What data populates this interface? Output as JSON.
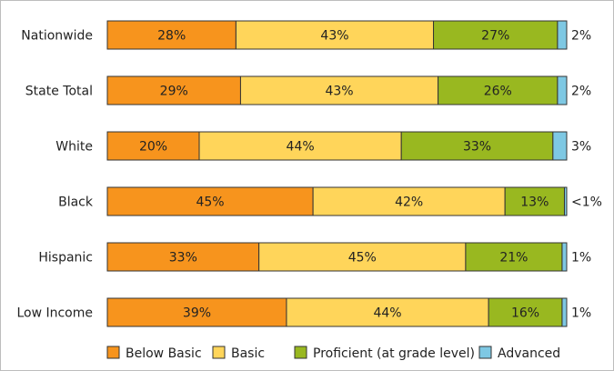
{
  "chart_data": {
    "type": "bar",
    "orientation": "horizontal",
    "stacked": true,
    "categories": [
      "Nationwide",
      "State Total",
      "White",
      "Black",
      "Hispanic",
      "Low Income"
    ],
    "series": [
      {
        "name": "Below Basic",
        "color": "#f7941d",
        "values": [
          28,
          29,
          20,
          45,
          33,
          39
        ],
        "labels": [
          "28%",
          "29%",
          "20%",
          "45%",
          "33%",
          "39%"
        ]
      },
      {
        "name": "Basic",
        "color": "#ffd55a",
        "values": [
          43,
          43,
          44,
          42,
          45,
          44
        ],
        "labels": [
          "43%",
          "43%",
          "44%",
          "42%",
          "45%",
          "44%"
        ]
      },
      {
        "name": "Proficient (at grade level)",
        "color": "#99b820",
        "values": [
          27,
          26,
          33,
          13,
          21,
          16
        ],
        "labels": [
          "27%",
          "26%",
          "33%",
          "13%",
          "21%",
          "16%"
        ]
      },
      {
        "name": "Advanced",
        "color": "#7ec8e3",
        "values": [
          2,
          2,
          3,
          0.5,
          1,
          1
        ],
        "labels": [
          "2%",
          "2%",
          "3%",
          "<1%",
          "1%",
          "1%"
        ]
      }
    ],
    "xlim": [
      0,
      100
    ],
    "grid": false,
    "legend": "bottom"
  }
}
